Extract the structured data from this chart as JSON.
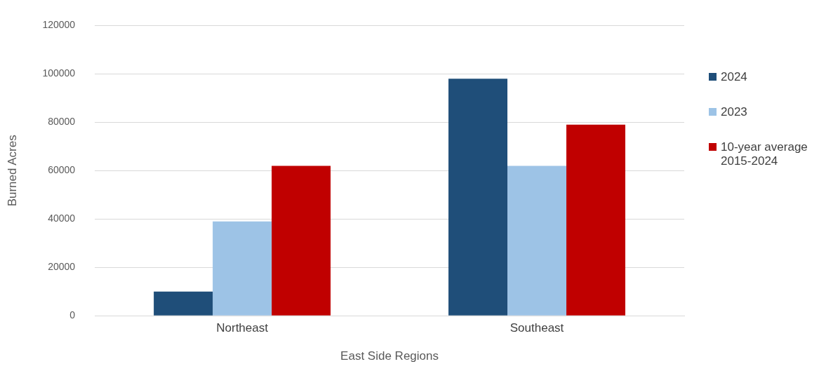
{
  "chart_data": {
    "type": "bar",
    "xlabel": "East Side Regions",
    "ylabel": "Burned Acres",
    "categories": [
      "Northeast",
      "Southeast"
    ],
    "series": [
      {
        "name": "2024",
        "color": "#1f4e79",
        "values": [
          10000,
          98000
        ]
      },
      {
        "name": "2023",
        "color": "#9dc3e6",
        "values": [
          39000,
          62000
        ]
      },
      {
        "name": "10-year average 2015-2024",
        "color": "#c00000",
        "values": [
          62000,
          79000
        ]
      }
    ],
    "ylim": [
      0,
      120000
    ],
    "yticks": [
      0,
      20000,
      40000,
      60000,
      80000,
      100000,
      120000
    ],
    "grid": "y",
    "legend": "right"
  }
}
